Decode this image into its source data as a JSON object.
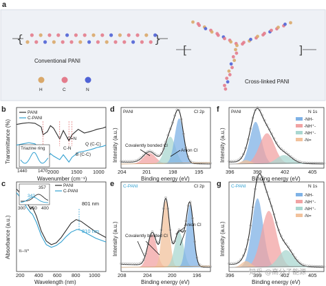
{
  "panel_labels": {
    "a": "a",
    "b": "b",
    "c": "c",
    "d": "d",
    "e": "e",
    "f": "f",
    "g": "g"
  },
  "schematic": {
    "conventional_label": "Conventional PANI",
    "crosslinked_label": "Cross-linked PANI",
    "atom_legend": [
      {
        "symbol": "H",
        "color": "#d9a86a"
      },
      {
        "symbol": "C",
        "color": "#e37c8c"
      },
      {
        "symbol": "N",
        "color": "#4f63d6"
      }
    ]
  },
  "colors": {
    "pani": "#2b2b2b",
    "cpani": "#2f9fd0",
    "blue": "#7fb2e6",
    "red": "#f1a3a3",
    "teal": "#a9d7d0",
    "orange": "#f2c29c"
  },
  "watermark": "知乎 @高分子能源",
  "chart_data": [
    {
      "id": "b",
      "type": "line",
      "xlabel": "Wavenumber (cm⁻¹)",
      "ylabel": "Transmittance (%)",
      "xlim": [
        2000,
        550
      ],
      "xticks": [
        "2000",
        "1500",
        "1000"
      ],
      "legend": [
        "PANI",
        "C-PANI"
      ],
      "annotations": [
        "C=N",
        "C-N",
        "B (C-C)",
        "Q (C-C)"
      ],
      "inset": {
        "title": "Triazine ring",
        "xticks": [
          "1440",
          "1470"
        ]
      },
      "series": [
        {
          "name": "PANI",
          "x": [
            2000,
            1900,
            1800,
            1700,
            1600,
            1570,
            1500,
            1450,
            1400,
            1300,
            1240,
            1150,
            1100,
            1000,
            900,
            820,
            750,
            700,
            600,
            550
          ],
          "y": [
            0.72,
            0.74,
            0.75,
            0.74,
            0.68,
            0.55,
            0.6,
            0.7,
            0.66,
            0.48,
            0.62,
            0.45,
            0.55,
            0.64,
            0.58,
            0.6,
            0.62,
            0.64,
            0.66,
            0.68
          ]
        },
        {
          "name": "C-PANI",
          "x": [
            2000,
            1900,
            1800,
            1700,
            1600,
            1570,
            1500,
            1450,
            1400,
            1300,
            1240,
            1150,
            1100,
            1000,
            900,
            820,
            750,
            700,
            600,
            550
          ],
          "y": [
            0.38,
            0.4,
            0.42,
            0.4,
            0.3,
            0.22,
            0.16,
            0.24,
            0.2,
            0.14,
            0.22,
            0.1,
            0.18,
            0.26,
            0.28,
            0.3,
            0.32,
            0.34,
            0.36,
            0.38
          ]
        }
      ]
    },
    {
      "id": "c",
      "type": "line",
      "xlabel": "Wavelength (nm)",
      "ylabel": "Absorbance (a.u.)",
      "xlim": [
        200,
        1100
      ],
      "xticks": [
        "200",
        "400",
        "600",
        "800",
        "1000"
      ],
      "legend": [
        "PANI",
        "C-PANI"
      ],
      "annotations": [
        "801 nm",
        "810 nm",
        "π–π*"
      ],
      "inset": {
        "xticks": [
          "300",
          "350",
          "400"
        ],
        "labels": [
          "357",
          "342"
        ]
      },
      "series": [
        {
          "name": "PANI",
          "x": [
            200,
            260,
            300,
            340,
            360,
            400,
            450,
            500,
            550,
            600,
            650,
            700,
            750,
            801,
            850,
            900,
            950,
            1000,
            1100
          ],
          "y": [
            0.92,
            0.85,
            0.78,
            0.7,
            0.72,
            0.62,
            0.45,
            0.34,
            0.3,
            0.32,
            0.38,
            0.46,
            0.54,
            0.58,
            0.56,
            0.52,
            0.48,
            0.44,
            0.38
          ]
        },
        {
          "name": "C-PANI",
          "x": [
            200,
            260,
            300,
            340,
            360,
            400,
            450,
            500,
            550,
            600,
            650,
            700,
            750,
            810,
            850,
            900,
            950,
            1000,
            1100
          ],
          "y": [
            0.88,
            0.8,
            0.72,
            0.66,
            0.64,
            0.55,
            0.4,
            0.3,
            0.27,
            0.29,
            0.33,
            0.39,
            0.44,
            0.47,
            0.46,
            0.43,
            0.4,
            0.37,
            0.33
          ]
        }
      ]
    },
    {
      "id": "d",
      "type": "line",
      "tag": "PANI",
      "title": "Cl 2p",
      "xlabel": "Binding energy (eV)",
      "ylabel": "Intensity (a.u.)",
      "xlim": [
        204,
        194
      ],
      "xticks": [
        "204",
        "201",
        "198",
        "195"
      ],
      "annotations": [
        "Covalently bonded Cl",
        "Anion Cl"
      ]
    },
    {
      "id": "e",
      "type": "line",
      "tag": "C-PANI",
      "title": "Cl 2p",
      "xlabel": "Binding energy (eV)",
      "ylabel": "Intensity (a.u.)",
      "xlim": [
        208,
        195
      ],
      "xticks": [
        "208",
        "204",
        "200",
        "196"
      ],
      "annotations": [
        "Covalently bonded Cl",
        "Anion Cl"
      ]
    },
    {
      "id": "f",
      "type": "line",
      "tag": "PANI",
      "title": "N 1s",
      "xlabel": "Binding energy (eV)",
      "ylabel": "Intensity (a.u.)",
      "xlim": [
        396,
        406
      ],
      "xticks": [
        "396",
        "399",
        "402",
        "405"
      ],
      "legend": [
        "-NH-",
        "-NH⁺-",
        "-NH⁺-",
        "-N="
      ]
    },
    {
      "id": "g",
      "type": "line",
      "tag": "C-PANI",
      "title": "N 1s",
      "xlabel": "Binding energy (eV)",
      "ylabel": "Intensity (a.u.)",
      "xlim": [
        396,
        406
      ],
      "xticks": [
        "396",
        "399",
        "402",
        "405"
      ],
      "legend": [
        "-NH-",
        "-NH⁺-",
        "-NH⁺-",
        "-N="
      ]
    }
  ]
}
